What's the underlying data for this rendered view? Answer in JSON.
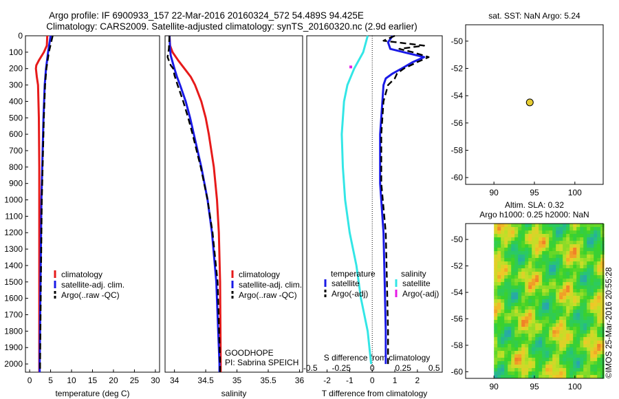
{
  "header": {
    "line1": "Argo profile: IF 6900933_157 22-Mar-2016 20160324_572 54.489S 94.425E",
    "line2": "Climatology: CARS2009. Satellite-adjusted climatology: synTS_20160320.nc (2.9d earlier)"
  },
  "colors": {
    "climatology": "#e61a1a",
    "satellite": "#1a1ae6",
    "argo": "#000000",
    "sal_satellite": "#33e6e6",
    "sal_argo": "#e61ae6",
    "marker": "#e6cc33"
  },
  "chart_data": [
    {
      "type": "line",
      "id": "temperature",
      "xlabel": "temperature (deg C)",
      "xlim": [
        -1,
        31
      ],
      "xticks": [
        "0",
        "5",
        "10",
        "15",
        "20",
        "25",
        "30"
      ],
      "ylim": [
        2050,
        0
      ],
      "yticks": [
        "0",
        "100",
        "200",
        "300",
        "400",
        "500",
        "600",
        "700",
        "800",
        "900",
        "1000",
        "1100",
        "1200",
        "1300",
        "1400",
        "1500",
        "1600",
        "1700",
        "1800",
        "1900",
        "2000"
      ],
      "legend": [
        "climatology",
        "satellite-adj. clim.",
        "Argo(..raw -QC)"
      ],
      "series": [
        {
          "key": "climatology",
          "depth": [
            0,
            60,
            100,
            150,
            180,
            200,
            250,
            300,
            500,
            800,
            1000,
            1500,
            2000,
            2050
          ],
          "values": [
            4.2,
            4.1,
            3.4,
            2.2,
            1.6,
            1.5,
            1.7,
            2.0,
            2.2,
            2.3,
            2.3,
            2.3,
            2.3,
            2.3
          ]
        },
        {
          "key": "satellite",
          "depth": [
            0,
            100,
            200,
            300,
            500,
            800,
            1000,
            1500,
            2000,
            2050
          ],
          "values": [
            5.0,
            4.4,
            3.9,
            3.6,
            3.3,
            3.0,
            2.8,
            2.6,
            2.4,
            2.4
          ]
        },
        {
          "key": "argo",
          "depth": [
            0,
            100,
            200,
            300,
            500,
            800,
            1000,
            1500,
            2000,
            2050
          ],
          "values": [
            5.5,
            4.6,
            4.0,
            3.7,
            3.4,
            3.1,
            2.9,
            2.7,
            2.5,
            2.5
          ]
        }
      ]
    },
    {
      "type": "line",
      "id": "salinity",
      "xlabel": "salinity",
      "xlim": [
        33.85,
        36.05
      ],
      "xticks": [
        "34",
        "34.5",
        "35",
        "35.5",
        "36"
      ],
      "ylim": [
        2050,
        0
      ],
      "legend": [
        "climatology",
        "satellite-adj. clim.",
        "Argo(..raw -QC)"
      ],
      "notes": [
        "GOODHOPE",
        "PI: Sabrina SPEICH"
      ],
      "series": [
        {
          "key": "climatology",
          "depth": [
            0,
            60,
            100,
            150,
            200,
            250,
            300,
            400,
            500,
            600,
            800,
            1000,
            1200,
            1500,
            2000,
            2050
          ],
          "values": [
            33.92,
            33.93,
            33.97,
            34.06,
            34.16,
            34.26,
            34.33,
            34.43,
            34.5,
            34.55,
            34.63,
            34.68,
            34.71,
            34.73,
            34.74,
            34.74
          ]
        },
        {
          "key": "satellite",
          "depth": [
            0,
            80,
            120,
            160,
            200,
            250,
            300,
            400,
            500,
            600,
            800,
            1000,
            1200,
            1500,
            2000,
            2050
          ],
          "values": [
            33.92,
            33.93,
            33.94,
            33.97,
            34.0,
            34.04,
            34.09,
            34.18,
            34.25,
            34.31,
            34.43,
            34.53,
            34.6,
            34.67,
            34.72,
            34.72
          ]
        },
        {
          "key": "argo",
          "depth": [
            0,
            80,
            130,
            180,
            200,
            240,
            300,
            400,
            500,
            600,
            800,
            1000,
            1200,
            1500,
            2000,
            2050
          ],
          "values": [
            33.92,
            33.91,
            33.89,
            33.94,
            33.98,
            34.0,
            34.05,
            34.14,
            34.22,
            34.29,
            34.42,
            34.53,
            34.61,
            34.69,
            34.73,
            34.73
          ]
        }
      ]
    },
    {
      "type": "line",
      "id": "differences",
      "xlabel": "T difference from climatology",
      "xlabel_top": "S difference from climatology",
      "xlim": [
        -2.9,
        3.1
      ],
      "xticks": [
        "-2",
        "-1",
        "0",
        "1",
        "2"
      ],
      "sticks": [
        "-0.5",
        "-0.25",
        "0",
        "0.25",
        "0.5"
      ],
      "ylim": [
        2050,
        0
      ],
      "legend_t_title": "temperature",
      "legend_s_title": "salinity",
      "legend_t": [
        "satellite",
        "Argo(-adj)"
      ],
      "legend_s": [
        "satellite",
        "Argo(-adj)"
      ],
      "series": [
        {
          "key": "satellite",
          "depth": [
            0,
            40,
            80,
            100,
            130,
            160,
            200,
            230,
            260,
            300,
            400,
            600,
            900,
            1200,
            1500,
            1800,
            2000
          ],
          "values": [
            0.9,
            0.7,
            0.8,
            1.4,
            2.3,
            1.8,
            1.3,
            0.9,
            0.6,
            0.5,
            0.45,
            0.35,
            0.35,
            0.5,
            0.55,
            0.6,
            0.6
          ]
        },
        {
          "key": "argo",
          "depth": [
            0,
            30,
            60,
            80,
            100,
            130,
            160,
            200,
            230,
            260,
            300,
            400,
            600,
            900,
            1200,
            1500,
            1800,
            2000
          ],
          "values": [
            1.0,
            0.5,
            2.3,
            1.2,
            1.8,
            2.5,
            2.0,
            1.4,
            1.1,
            1.0,
            0.7,
            0.5,
            0.4,
            0.4,
            0.6,
            0.65,
            0.7,
            0.7
          ]
        },
        {
          "key": "sal_satellite",
          "depth": [
            0,
            100,
            200,
            300,
            400,
            600,
            800,
            1000,
            1200,
            1400,
            1600,
            1800,
            2000
          ],
          "values": [
            -0.2,
            -0.4,
            -0.8,
            -1.1,
            -1.25,
            -1.35,
            -1.3,
            -1.2,
            -1.0,
            -0.7,
            -0.5,
            -0.2,
            -0.05
          ]
        },
        {
          "key": "sal_argo",
          "depth": [
            190
          ],
          "values": [
            -0.95
          ]
        }
      ]
    },
    {
      "type": "scatter",
      "id": "sst_map",
      "title": "sat. SST: NaN Argo: 5.24",
      "xlim": [
        86.5,
        103.5
      ],
      "ylim": [
        -60.5,
        -48.8
      ],
      "xticks": [
        "90",
        "95",
        "100"
      ],
      "yticks": [
        "-50",
        "-52",
        "-54",
        "-56",
        "-58",
        "-60"
      ],
      "points": [
        {
          "x": 94.43,
          "y": -54.49
        }
      ]
    },
    {
      "type": "heatmap",
      "id": "sla_map",
      "title_line1": "Altim. SLA: 0.32",
      "title_line2": "Argo h1000: 0.25 h2000: NaN",
      "xlim": [
        86.5,
        103.5
      ],
      "ylim": [
        -60.5,
        -48.8
      ],
      "data_xlim": [
        90,
        103.5
      ],
      "xticks": [
        "90",
        "95",
        "100"
      ],
      "yticks": [
        "-50",
        "-52",
        "-54",
        "-56",
        "-58",
        "-60"
      ],
      "points": [
        {
          "x": 94.43,
          "y": -54.49
        }
      ]
    }
  ],
  "footer": {
    "credit": "©IMOS 25-Mar-2016 20:55:28"
  }
}
